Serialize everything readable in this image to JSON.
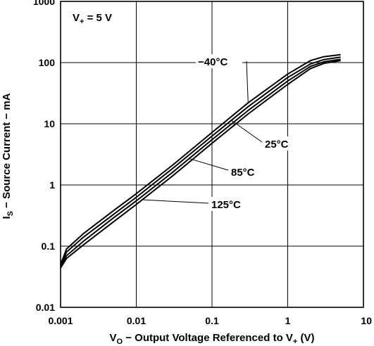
{
  "chart_data": {
    "type": "line",
    "title": "",
    "annotation": {
      "main": "V",
      "sub": "+",
      "rest": " = 5 V"
    },
    "xlabel": {
      "main": "V",
      "sub": "O",
      "mid": " − Output Voltage Referenced to V",
      "sub2": "+",
      "rest": " (V)"
    },
    "ylabel": {
      "main": "I",
      "sub": "S",
      "rest": " − Source Current − mA"
    },
    "xscale": "log",
    "yscale": "log",
    "xlim": [
      0.001,
      10
    ],
    "ylim": [
      0.01,
      1000
    ],
    "grid": true,
    "xticks": [
      {
        "value": 0.001,
        "label": "0.001"
      },
      {
        "value": 0.01,
        "label": "0.01"
      },
      {
        "value": 0.1,
        "label": "0.1"
      },
      {
        "value": 1,
        "label": "1"
      },
      {
        "value": 10,
        "label": "10"
      }
    ],
    "yticks": [
      {
        "value": 0.01,
        "label": "0.01"
      },
      {
        "value": 0.1,
        "label": "0.1"
      },
      {
        "value": 1,
        "label": "1"
      },
      {
        "value": 10,
        "label": "10"
      },
      {
        "value": 100,
        "label": "100"
      },
      {
        "value": 1000,
        "label": "1000"
      }
    ],
    "series": [
      {
        "name": "−40°C",
        "points": [
          [
            0.001,
            0.05
          ],
          [
            0.0012,
            0.09
          ],
          [
            0.002,
            0.16
          ],
          [
            0.005,
            0.38
          ],
          [
            0.01,
            0.72
          ],
          [
            0.03,
            2.1
          ],
          [
            0.1,
            7.2
          ],
          [
            0.3,
            22
          ],
          [
            1,
            65
          ],
          [
            2,
            108
          ],
          [
            3,
            125
          ],
          [
            5,
            135
          ]
        ]
      },
      {
        "name": "25°C",
        "points": [
          [
            0.001,
            0.048
          ],
          [
            0.0012,
            0.08
          ],
          [
            0.002,
            0.14
          ],
          [
            0.005,
            0.33
          ],
          [
            0.01,
            0.63
          ],
          [
            0.03,
            1.85
          ],
          [
            0.1,
            6.3
          ],
          [
            0.3,
            19
          ],
          [
            1,
            57
          ],
          [
            2,
            95
          ],
          [
            3,
            112
          ],
          [
            5,
            123
          ]
        ]
      },
      {
        "name": "85°C",
        "points": [
          [
            0.001,
            0.046
          ],
          [
            0.0012,
            0.07
          ],
          [
            0.002,
            0.12
          ],
          [
            0.005,
            0.29
          ],
          [
            0.01,
            0.55
          ],
          [
            0.03,
            1.6
          ],
          [
            0.1,
            5.5
          ],
          [
            0.3,
            16.5
          ],
          [
            1,
            50
          ],
          [
            2,
            87
          ],
          [
            3,
            103
          ],
          [
            5,
            113
          ]
        ]
      },
      {
        "name": "125°C",
        "points": [
          [
            0.001,
            0.044
          ],
          [
            0.0012,
            0.063
          ],
          [
            0.002,
            0.105
          ],
          [
            0.005,
            0.25
          ],
          [
            0.01,
            0.48
          ],
          [
            0.03,
            1.4
          ],
          [
            0.1,
            4.8
          ],
          [
            0.3,
            14.5
          ],
          [
            1,
            44
          ],
          [
            2,
            80
          ],
          [
            3,
            97
          ],
          [
            5,
            108
          ]
        ]
      }
    ],
    "labels": [
      {
        "series": 0,
        "text": "−40°C"
      },
      {
        "series": 1,
        "text": "25°C"
      },
      {
        "series": 2,
        "text": "85°C"
      },
      {
        "series": 3,
        "text": "125°C"
      }
    ]
  }
}
